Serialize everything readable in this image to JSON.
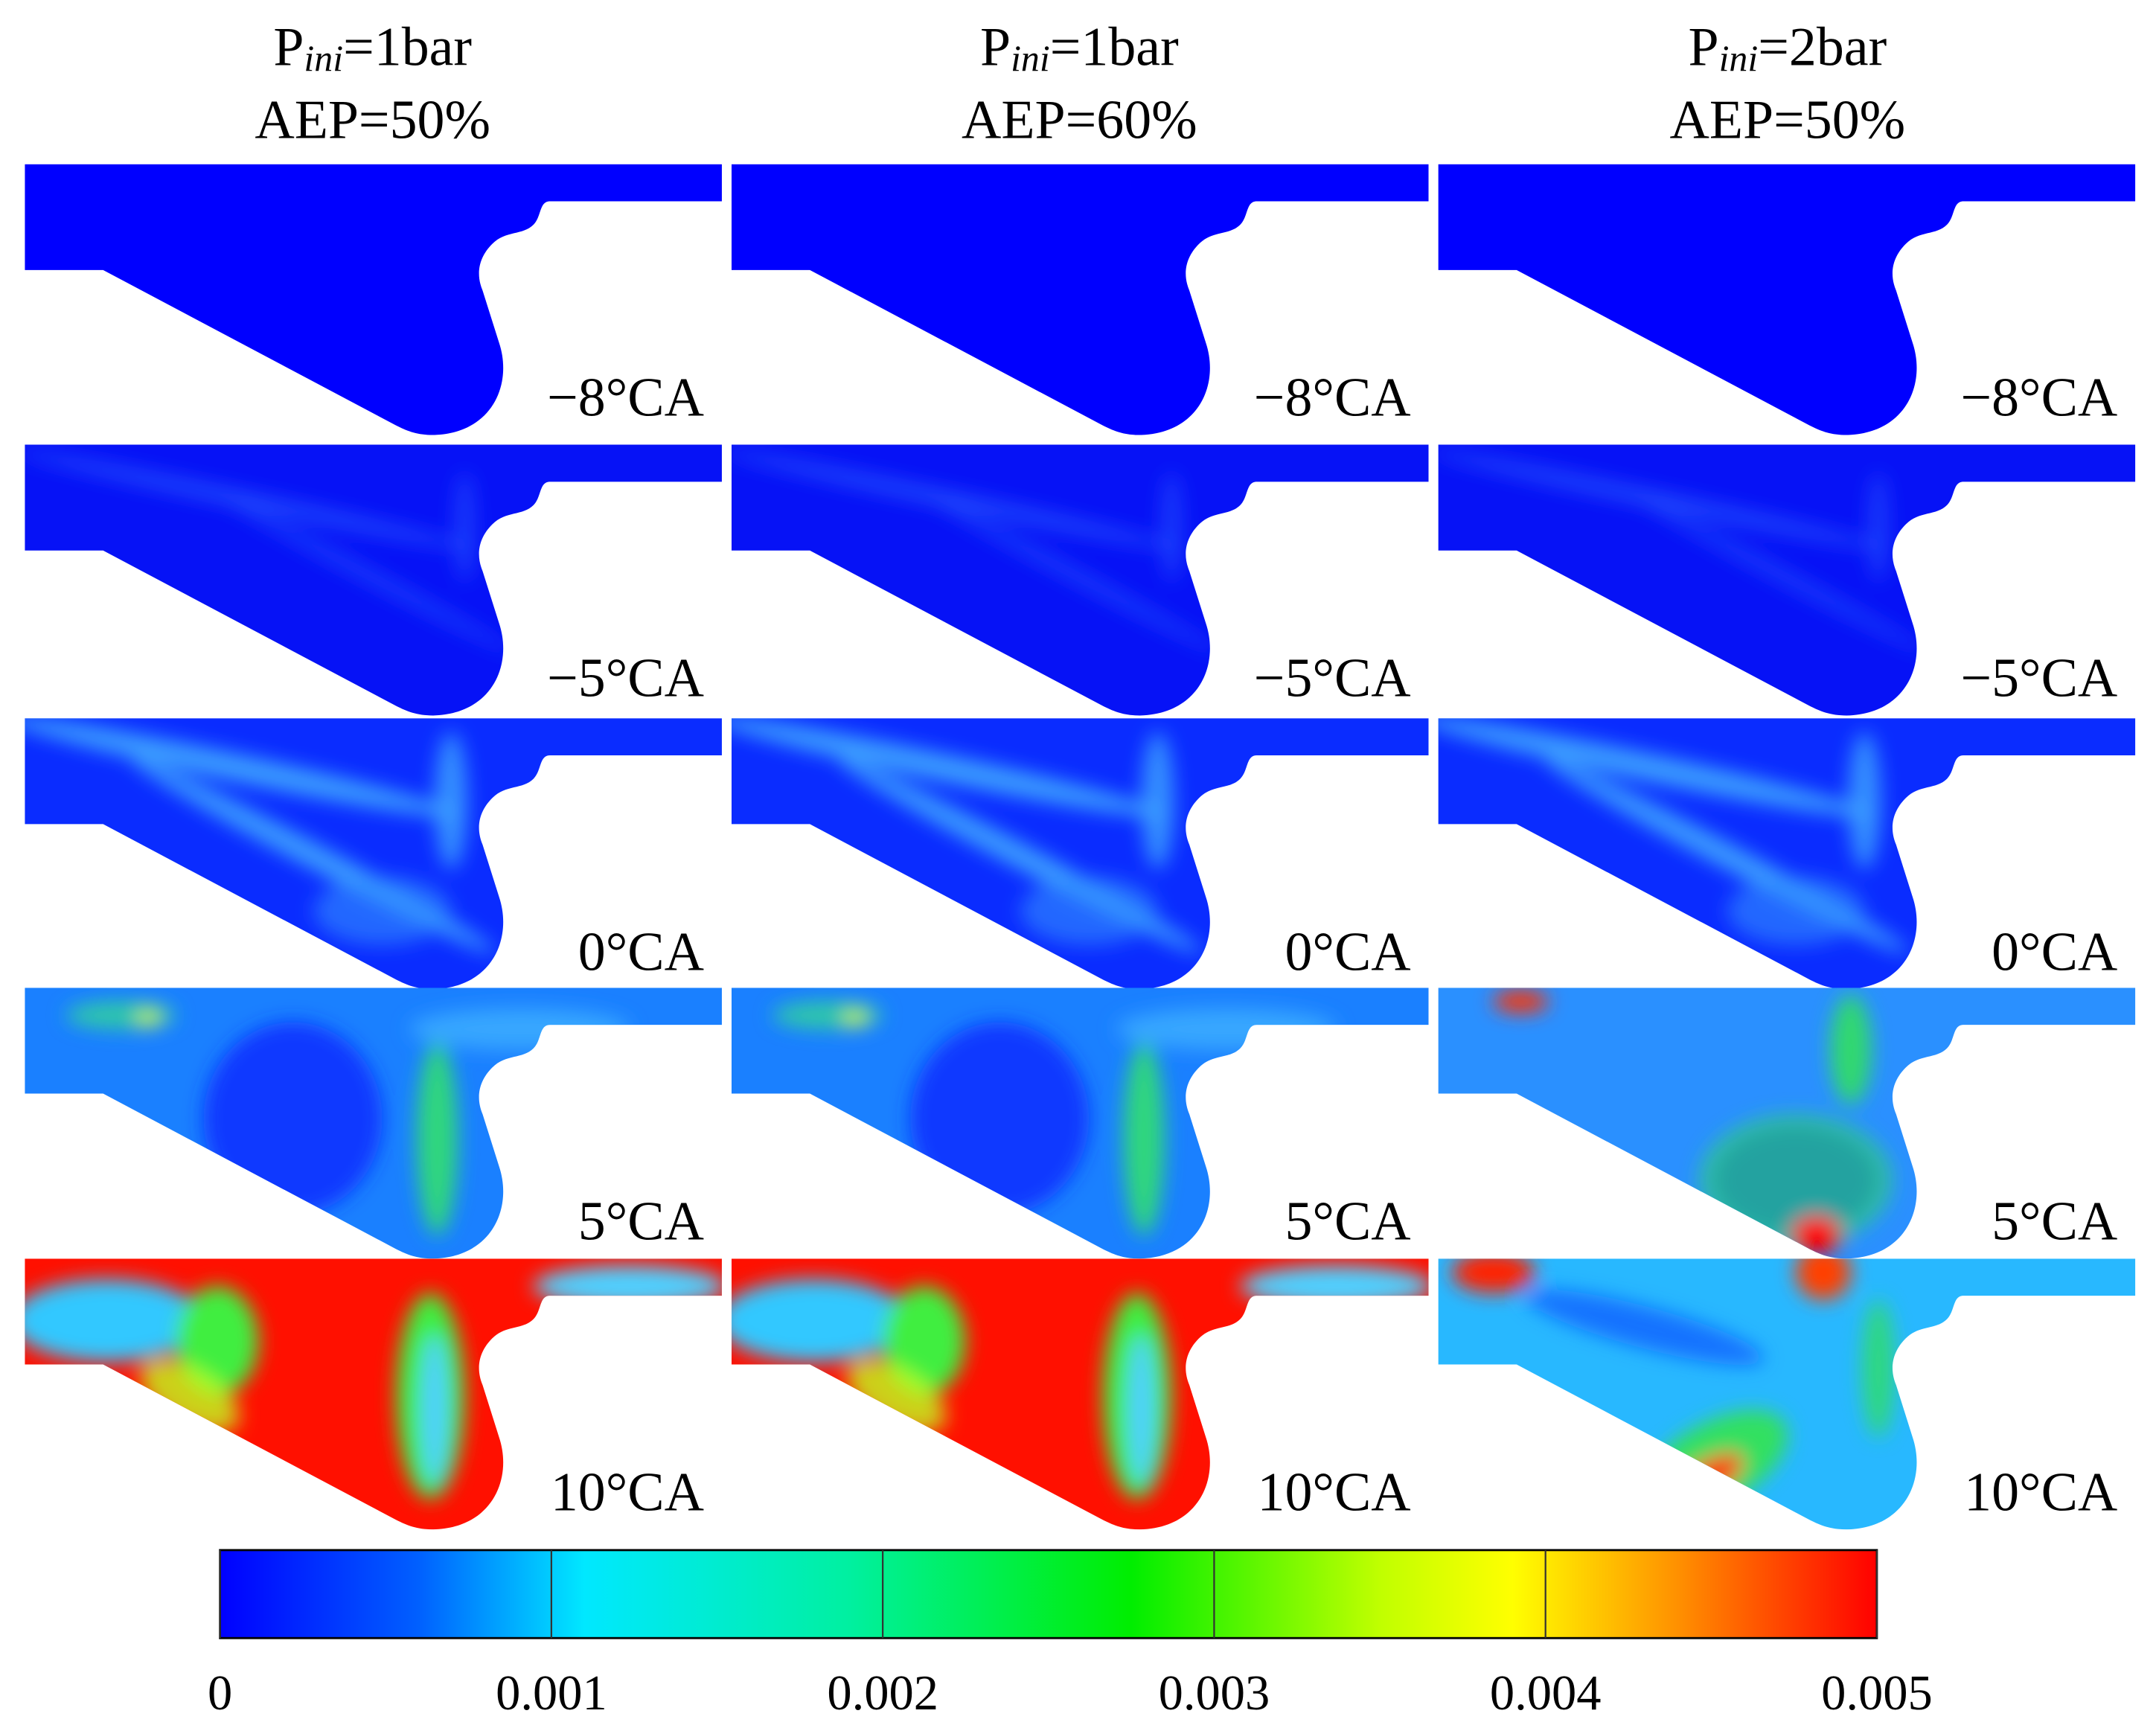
{
  "columns": [
    {
      "p": "P",
      "sub": "ini",
      "cond": "=1bar",
      "aep": "AEP=50%"
    },
    {
      "p": "P",
      "sub": "ini",
      "cond": "=1bar",
      "aep": "AEP=60%"
    },
    {
      "p": "P",
      "sub": "ini",
      "cond": "=2bar",
      "aep": "AEP=50%"
    }
  ],
  "rows": [
    "−8°CA",
    "−5°CA",
    "0°CA",
    "5°CA",
    "10°CA"
  ],
  "colorbar": {
    "lim": [
      0,
      0.005
    ],
    "ticks": [
      0,
      0.001,
      0.002,
      0.003,
      0.004,
      0.005
    ]
  }
}
